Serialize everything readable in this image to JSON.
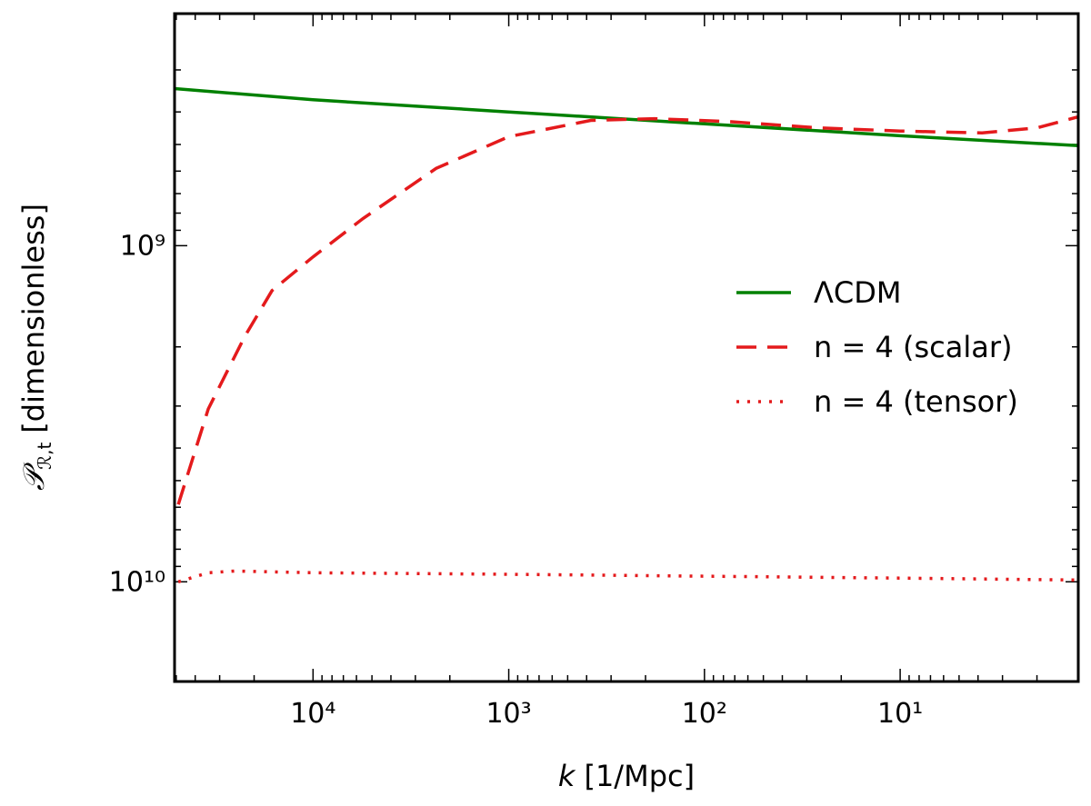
{
  "chart_data": {
    "type": "line",
    "xlabel": {
      "symbol": "k",
      "text": "[1/Mpc]"
    },
    "ylabel": {
      "symbol": "𝒫",
      "subscript": "ℛ,t",
      "text": "[dimensionless]"
    },
    "xscale": "log",
    "yscale": "log",
    "xlim": [
      51000,
      1.23
    ],
    "ylim": [
      19800000000,
      204000000
    ],
    "xticks": [
      {
        "value": 10000,
        "label": "10⁴"
      },
      {
        "value": 1000,
        "label": "10³"
      },
      {
        "value": 100,
        "label": "10²"
      },
      {
        "value": 10,
        "label": "10¹"
      }
    ],
    "yticks": [
      {
        "value": 1000000000,
        "label": "10⁹"
      },
      {
        "value": 10000000000,
        "label": "10¹⁰"
      }
    ],
    "grid": false,
    "legend": "right",
    "series": [
      {
        "name": "ΛCDM",
        "color": "#008000",
        "style": "solid",
        "x": [
          51000,
          10000,
          1000,
          100,
          10,
          1.23
        ],
        "values": [
          341000000,
          368000000,
          400000000,
          434000000,
          471000000,
          504000000
        ]
      },
      {
        "name": "n = 4 (scalar)",
        "color": "#e41a1c",
        "style": "dashed",
        "x": [
          48800,
          34300,
          22300,
          16200,
          10000,
          5550,
          2350,
          1000,
          381,
          180,
          76.6,
          26.2,
          10,
          3.81,
          2.0,
          1.22
        ],
        "values": [
          5890000000,
          3060000000,
          1860000000,
          1360000000,
          1080000000,
          830000000,
          589000000,
          474000000,
          424000000,
          419000000,
          427000000,
          446000000,
          456000000,
          462000000,
          446000000,
          413000000
        ]
      },
      {
        "name": "n = 4 (tensor)",
        "color": "#e41a1c",
        "style": "dotted",
        "x": [
          48800,
          34300,
          25000,
          10000,
          1000,
          10,
          1.22
        ],
        "values": [
          10000000000,
          9400000000,
          9290000000,
          9400000000,
          9500000000,
          9750000000,
          9880000000
        ]
      }
    ]
  }
}
